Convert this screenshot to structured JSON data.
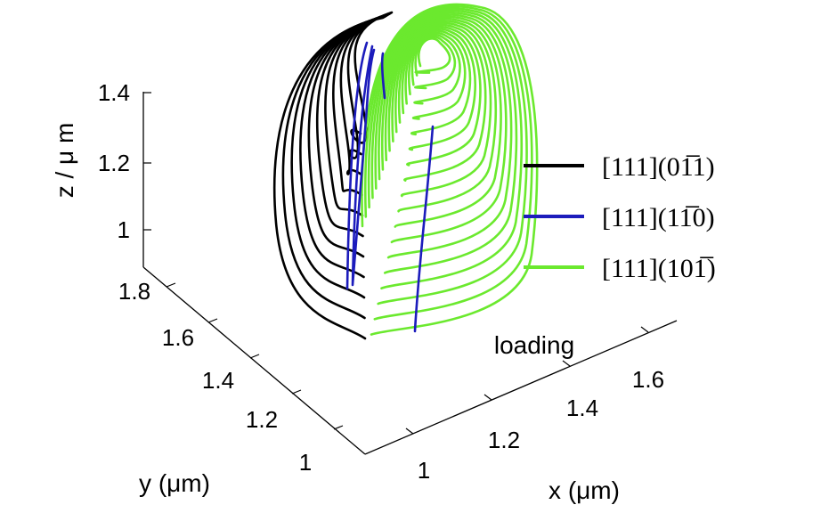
{
  "chart_data": {
    "type": "line",
    "projection": "3d",
    "title": "",
    "xlabel": "x (μm)",
    "ylabel": "y (μm)",
    "zlabel": "z / μ m",
    "xlim": [
      0.9,
      1.8
    ],
    "ylim": [
      0.9,
      1.85
    ],
    "zlim": [
      0.85,
      1.5
    ],
    "x_ticks": [
      "1",
      "1.2",
      "1.4",
      "1.6"
    ],
    "y_ticks": [
      "1",
      "1.2",
      "1.4",
      "1.6",
      "1.8"
    ],
    "z_ticks": [
      "1",
      "1.2",
      "1.4"
    ],
    "grid": false,
    "legend_position": "right",
    "annotation": "loading",
    "series": [
      {
        "name": "[111](01̅1)",
        "color": "#000000",
        "loops": 11
      },
      {
        "name": "[111](11̅0)",
        "color": "#1c1cbc",
        "loops": 4
      },
      {
        "name": "[111](101̅)",
        "color": "#6be92e",
        "loops": 18
      }
    ]
  }
}
